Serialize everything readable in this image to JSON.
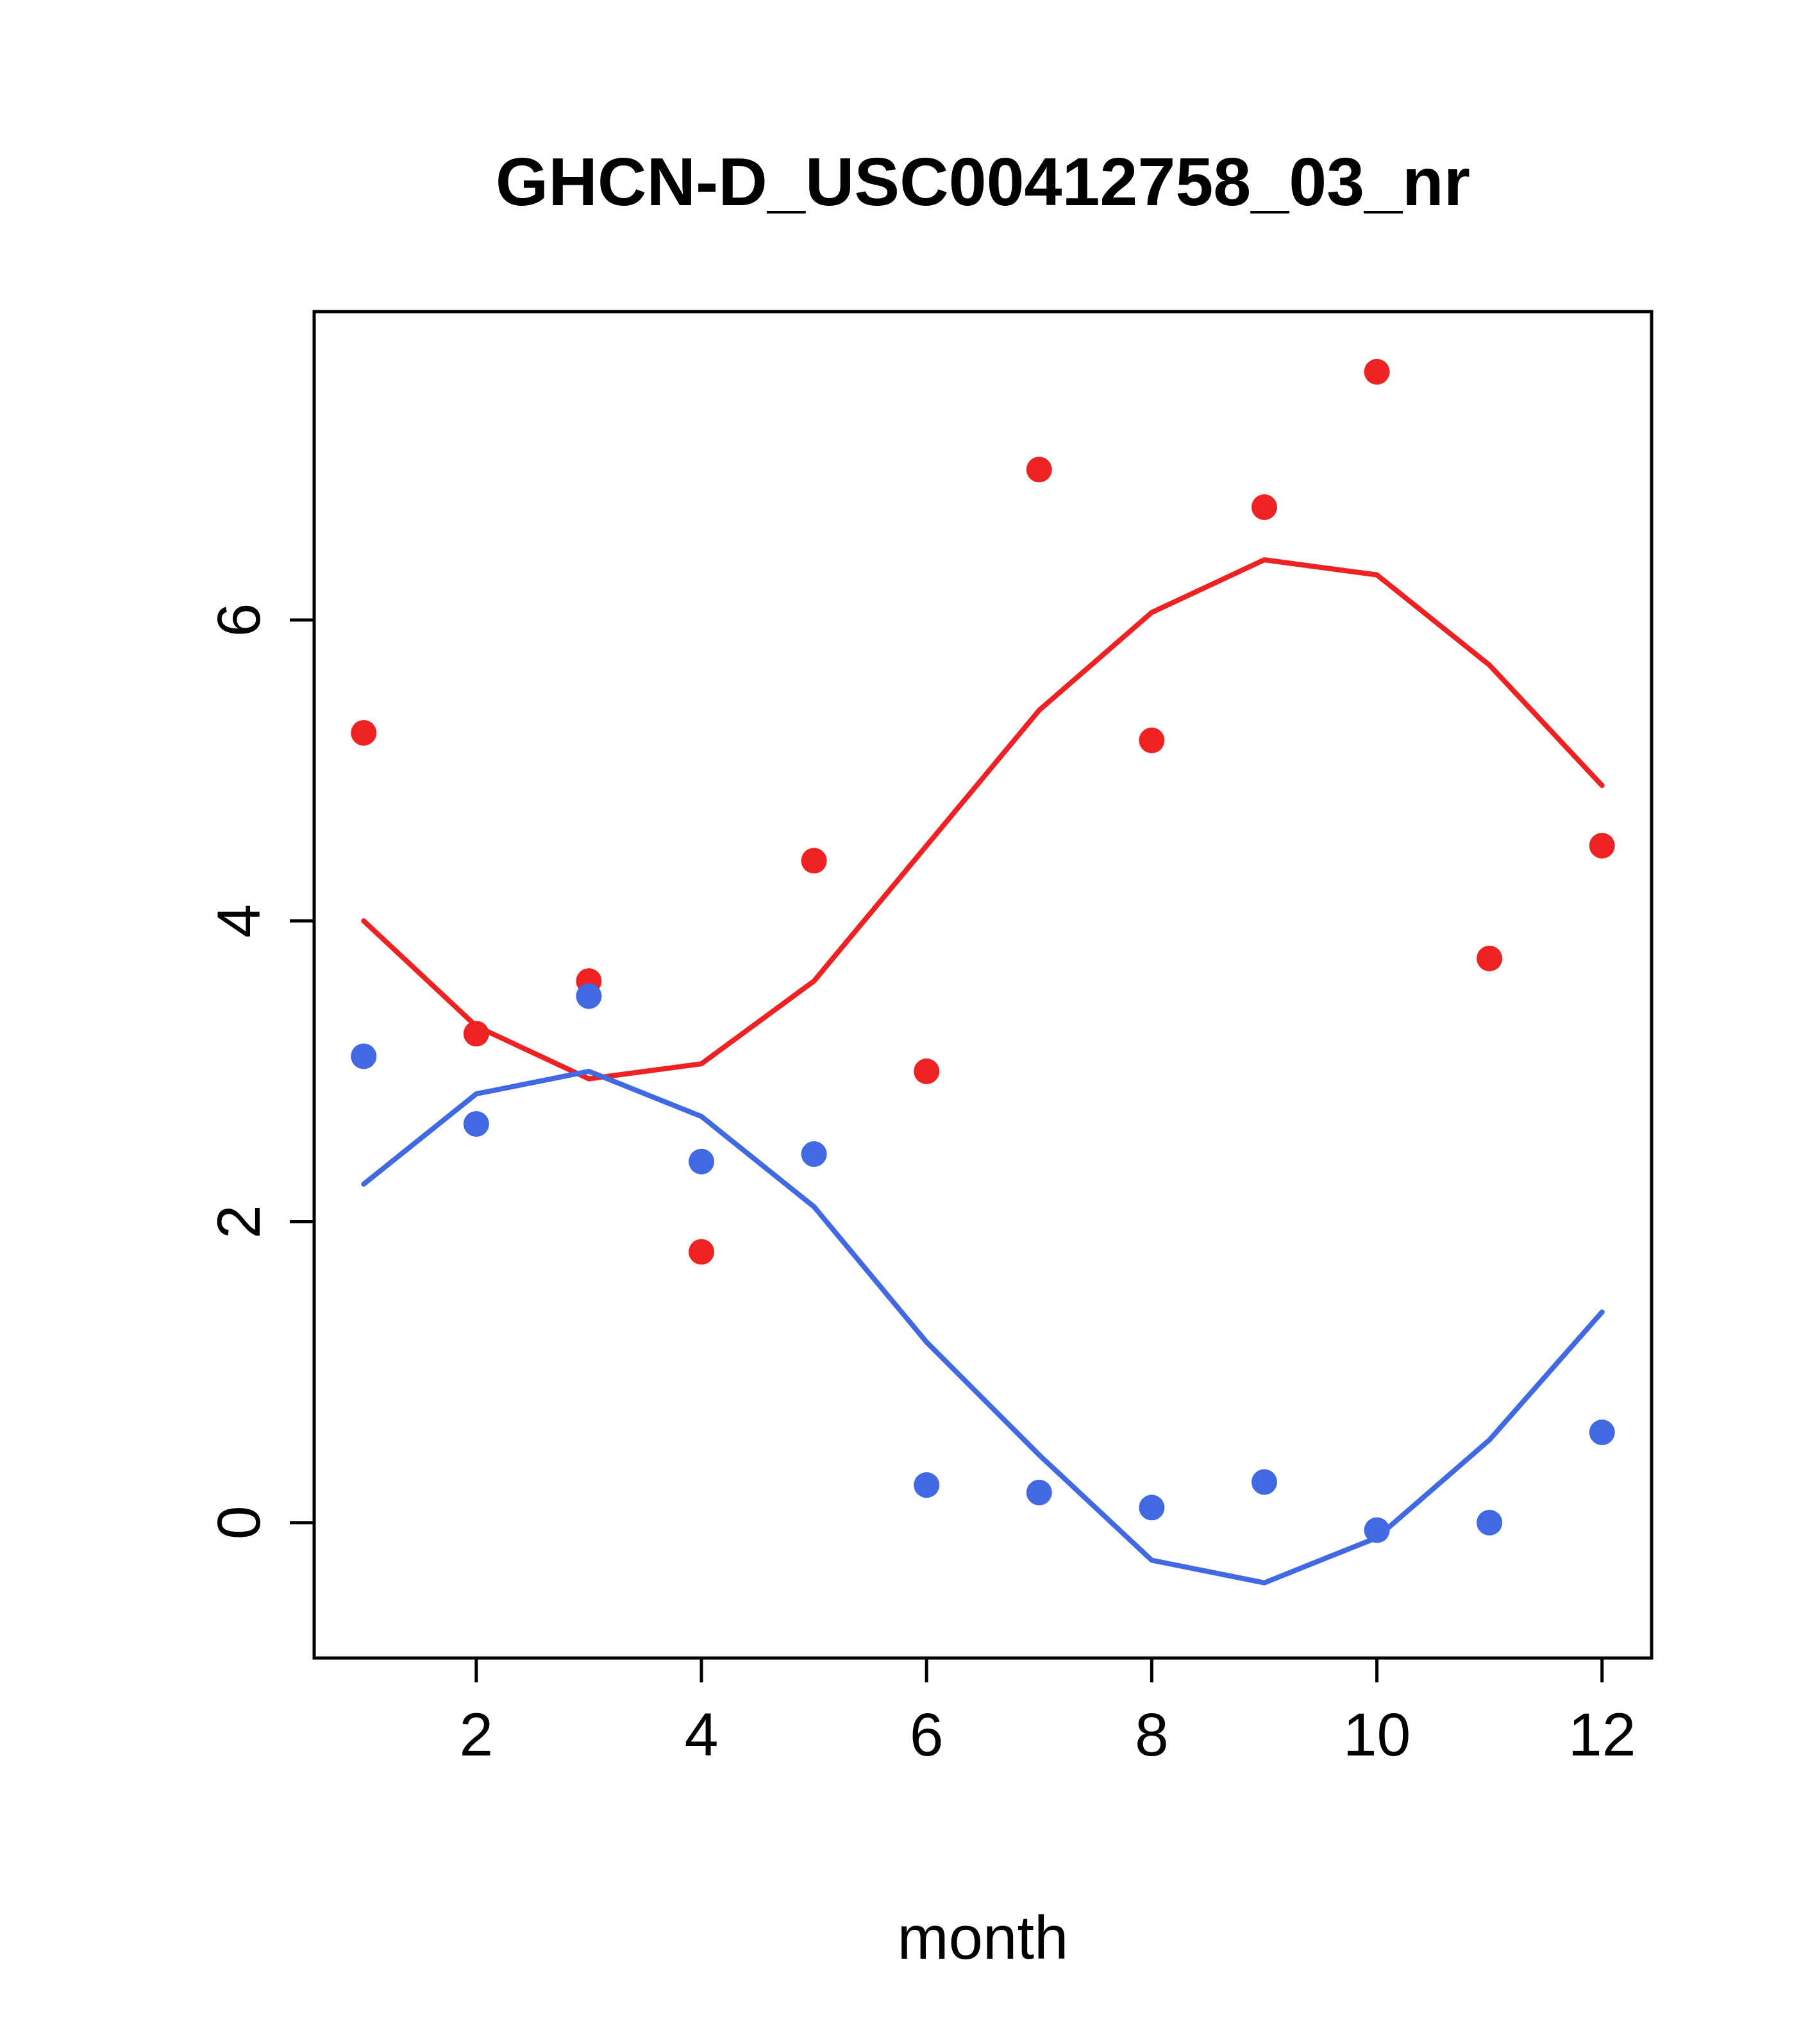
{
  "chart_data": {
    "type": "scatter",
    "title": "GHCN-D_USC00412758_03_nr",
    "xlabel": "month",
    "ylabel": "",
    "grid": false,
    "legend": "none",
    "xlim": [
      0.56,
      12.44
    ],
    "ylim": [
      -0.9,
      8.05
    ],
    "x_ticks": [
      2,
      4,
      6,
      8,
      10,
      12
    ],
    "y_ticks": [
      0,
      2,
      4,
      6
    ],
    "x": [
      1,
      2,
      3,
      4,
      5,
      6,
      7,
      8,
      9,
      10,
      11,
      12
    ],
    "colors": {
      "red": "#ee2222",
      "blue": "#4169e1",
      "axis": "#000000"
    },
    "series": [
      {
        "name": "red-series-points",
        "kind": "points",
        "color": "#ee2222",
        "values": [
          5.25,
          3.25,
          3.6,
          1.8,
          4.4,
          3.0,
          7.0,
          5.2,
          6.75,
          7.65,
          3.75,
          4.5
        ]
      },
      {
        "name": "blue-series-points",
        "kind": "points",
        "color": "#4169e1",
        "values": [
          3.1,
          2.65,
          3.5,
          2.4,
          2.45,
          0.25,
          0.2,
          0.1,
          0.27,
          -0.05,
          0.0,
          0.6
        ]
      },
      {
        "name": "red-smooth-line",
        "kind": "line",
        "color": "#ee2222",
        "values": [
          4.0,
          3.3,
          2.95,
          3.05,
          3.6,
          4.5,
          5.4,
          6.05,
          6.4,
          6.3,
          5.7,
          4.9
        ]
      },
      {
        "name": "blue-smooth-line",
        "kind": "line",
        "color": "#4169e1",
        "values": [
          2.25,
          2.85,
          3.0,
          2.7,
          2.1,
          1.2,
          0.45,
          -0.25,
          -0.4,
          -0.1,
          0.55,
          1.4
        ]
      }
    ]
  }
}
